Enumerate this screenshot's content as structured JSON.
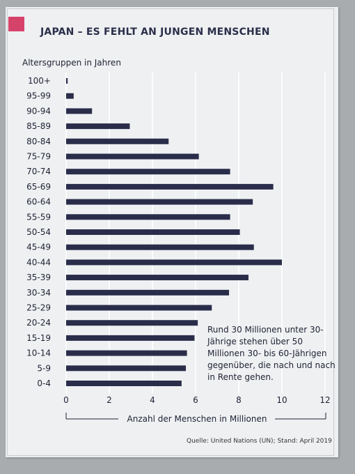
{
  "header": {
    "title": "JAPAN – ES FEHLT AN JUNGEN MENSCHEN"
  },
  "annotation": "Rund 30 Millionen unter 30-Jährige stehen über 50 Millionen 30- bis 60-Jährigen gegenüber, die nach und nach in Rente gehen.",
  "source": "Quelle: United Nations (UN); Stand: April 2019",
  "colors": {
    "accent": "#d6436a",
    "bar": "#2a2d4a",
    "grid": "#ffffff"
  },
  "chart_data": {
    "type": "bar",
    "orientation": "horizontal",
    "title": "JAPAN – ES FEHLT AN JUNGEN MENSCHEN",
    "ylabel": "Altersgruppen in Jahren",
    "xlabel": "Anzahl der Menschen in Millionen",
    "xlim": [
      0,
      12
    ],
    "xticks": [
      0,
      2,
      4,
      6,
      8,
      10,
      12
    ],
    "grid": true,
    "categories": [
      "100+",
      "95-99",
      "90-94",
      "85-89",
      "80-84",
      "75-79",
      "70-74",
      "65-69",
      "60-64",
      "55-59",
      "50-54",
      "45-49",
      "40-44",
      "35-39",
      "30-34",
      "25-29",
      "20-24",
      "15-19",
      "10-14",
      "5-9",
      "0-4"
    ],
    "values": [
      0.07,
      0.35,
      1.2,
      2.95,
      4.75,
      6.15,
      7.6,
      9.6,
      8.65,
      7.6,
      8.05,
      8.7,
      10.0,
      8.45,
      7.55,
      6.75,
      6.1,
      5.95,
      5.6,
      5.55,
      5.35
    ]
  }
}
